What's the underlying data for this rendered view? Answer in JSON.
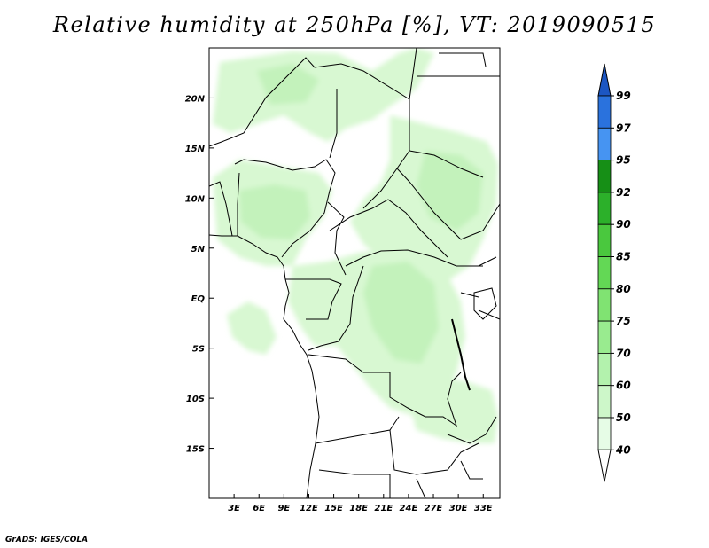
{
  "title": "Relative humidity at 250hPa [%], VT: 2019090515",
  "credit": "GrADS: IGES/COLA",
  "map": {
    "lon_range": [
      0,
      35
    ],
    "lat_range": [
      -20,
      25
    ],
    "lon_ticks": [
      {
        "value": 3,
        "label": "3E"
      },
      {
        "value": 6,
        "label": "6E"
      },
      {
        "value": 9,
        "label": "9E"
      },
      {
        "value": 12,
        "label": "12E"
      },
      {
        "value": 15,
        "label": "15E"
      },
      {
        "value": 18,
        "label": "18E"
      },
      {
        "value": 21,
        "label": "21E"
      },
      {
        "value": 24,
        "label": "24E"
      },
      {
        "value": 27,
        "label": "27E"
      },
      {
        "value": 30,
        "label": "30E"
      },
      {
        "value": 33,
        "label": "33E"
      }
    ],
    "lat_ticks": [
      {
        "value": 20,
        "label": "20N"
      },
      {
        "value": 15,
        "label": "15N"
      },
      {
        "value": 10,
        "label": "10N"
      },
      {
        "value": 5,
        "label": "5N"
      },
      {
        "value": 0,
        "label": "EQ"
      },
      {
        "value": -5,
        "label": "5S"
      },
      {
        "value": -10,
        "label": "10S"
      },
      {
        "value": -15,
        "label": "15S"
      }
    ]
  },
  "colorbar": {
    "levels": [
      "40",
      "50",
      "60",
      "70",
      "75",
      "80",
      "85",
      "90",
      "92",
      "95",
      "97",
      "99"
    ],
    "colors": [
      "#ffffff",
      "#e6fce6",
      "#cdf7c9",
      "#b3f2ad",
      "#99eb8f",
      "#80e372",
      "#63d855",
      "#4ac83e",
      "#2cb02a",
      "#168f16",
      "#4694f2",
      "#2a72dd",
      "#1c56c2"
    ]
  },
  "colors": {
    "light_green": "#d8f8d2",
    "mid_green": "#c3f2bb",
    "border": "#000000"
  }
}
